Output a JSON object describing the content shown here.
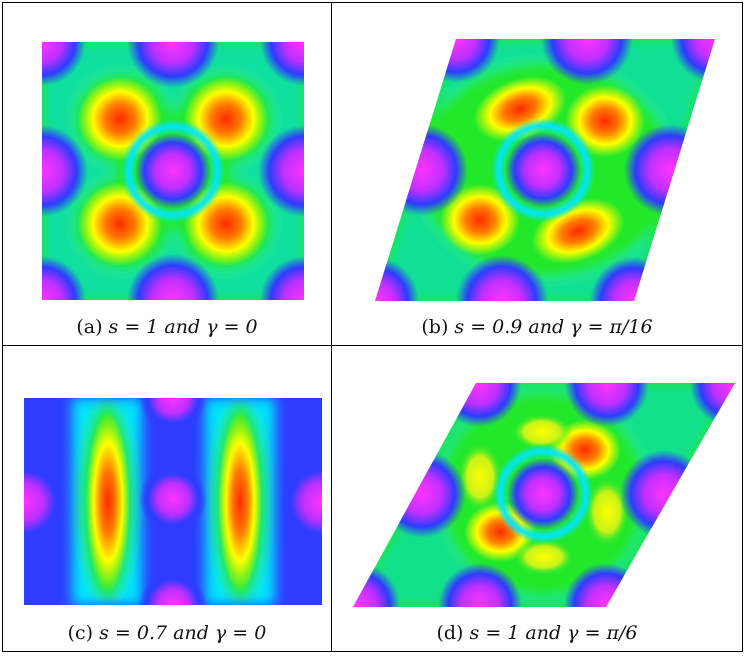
{
  "panels": [
    {
      "id": "a",
      "label": "(a)",
      "caption": "s = 1 and γ = 0",
      "s": 1,
      "gamma": "0"
    },
    {
      "id": "b",
      "label": "(b)",
      "caption": "s = 0.9 and γ = π/16",
      "s": 0.9,
      "gamma": "π/16"
    },
    {
      "id": "c",
      "label": "(c)",
      "caption": "s = 0.7 and γ = 0",
      "s": 0.7,
      "gamma": "0"
    },
    {
      "id": "d",
      "label": "(d)",
      "caption": "s = 1 and γ = π/6",
      "s": 1,
      "gamma": "π/6"
    }
  ],
  "colormap": [
    "#ff33ff",
    "#2e3cff",
    "#00e5ff",
    "#22e82b",
    "#ffff00",
    "#ff2a00"
  ]
}
